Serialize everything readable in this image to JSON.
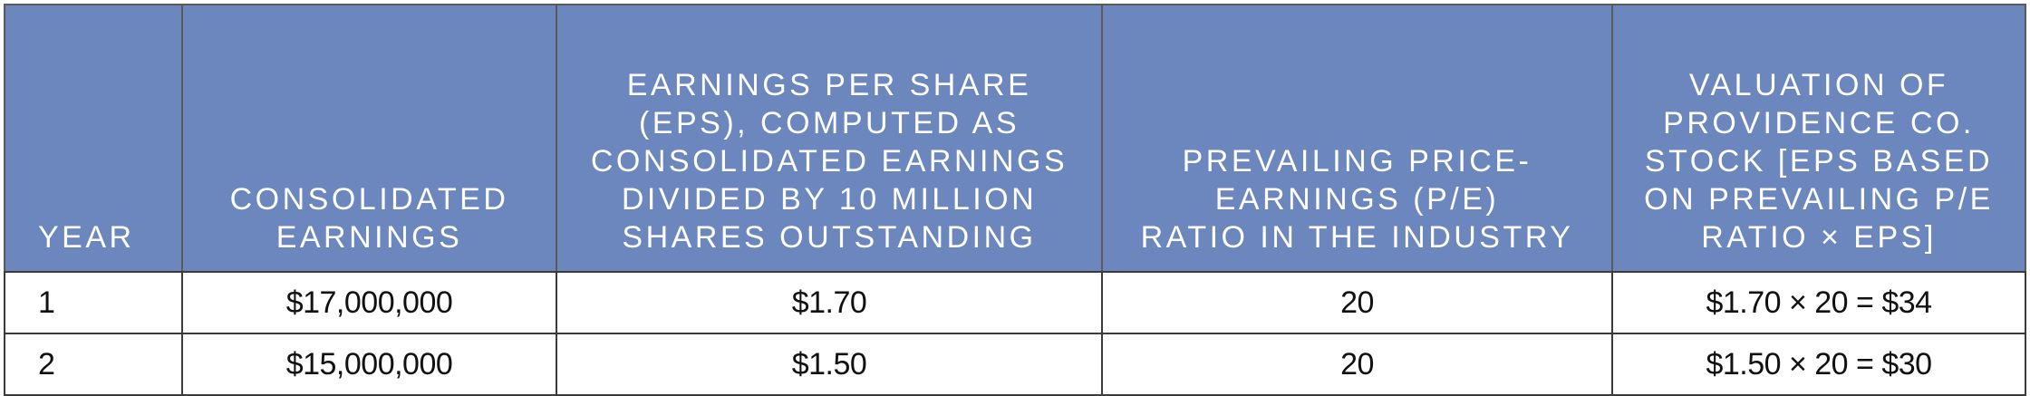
{
  "headers": [
    "YEAR",
    "CONSOLIDATED\nEARNINGS",
    "EARNINGS PER SHARE\n(EPS), COMPUTED AS\nCONSOLIDATED EARNINGS\nDIVIDED BY 10 MILLION\nSHARES OUTSTANDING",
    "PREVAILING PRICE-\nEARNINGS (P/E)\nRATIO IN THE INDUSTRY",
    "VALUATION OF\nPROVIDENCE CO.\nSTOCK [EPS BASED\nON PREVAILING P/E\nRATIO × EPS]"
  ],
  "rows": [
    [
      "1",
      "$17,000,000",
      "$1.70",
      "20",
      "$1.70 × 20 = $34"
    ],
    [
      "2",
      "$15,000,000",
      "$1.50",
      "20",
      "$1.50 × 20 = $30"
    ]
  ],
  "colors": {
    "header_background": "#6b87bd",
    "header_text": "#ffffff",
    "border": "#3b3b3b"
  }
}
